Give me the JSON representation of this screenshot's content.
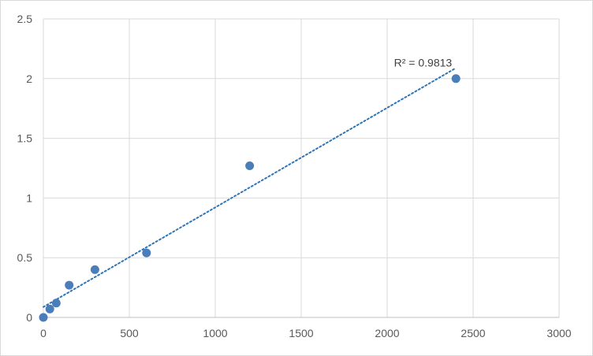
{
  "chart_data": {
    "type": "scatter",
    "title": "",
    "xlabel": "",
    "ylabel": "",
    "xlim": [
      0,
      3000
    ],
    "ylim": [
      0,
      2.5
    ],
    "x_ticks": [
      0,
      500,
      1000,
      1500,
      2000,
      2500,
      3000
    ],
    "y_ticks": [
      0,
      0.5,
      1,
      1.5,
      2,
      2.5
    ],
    "x_tick_labels": [
      "0",
      "500",
      "1000",
      "1500",
      "2000",
      "2500",
      "3000"
    ],
    "y_tick_labels": [
      "0",
      "0.5",
      "1",
      "1.5",
      "2",
      "2.5"
    ],
    "grid": true,
    "legend": "none",
    "series": [
      {
        "color": "#4a7ebb",
        "x": [
          0,
          37.5,
          75,
          150,
          300,
          600,
          1200,
          2400
        ],
        "y": [
          0.0,
          0.07,
          0.12,
          0.27,
          0.4,
          0.54,
          1.27,
          2.0
        ]
      }
    ],
    "trendline": {
      "type": "linear",
      "style": "dotted",
      "color": "#2e75b6",
      "x_range": [
        0,
        2400
      ],
      "annotation": "R² = 0.9813"
    }
  }
}
